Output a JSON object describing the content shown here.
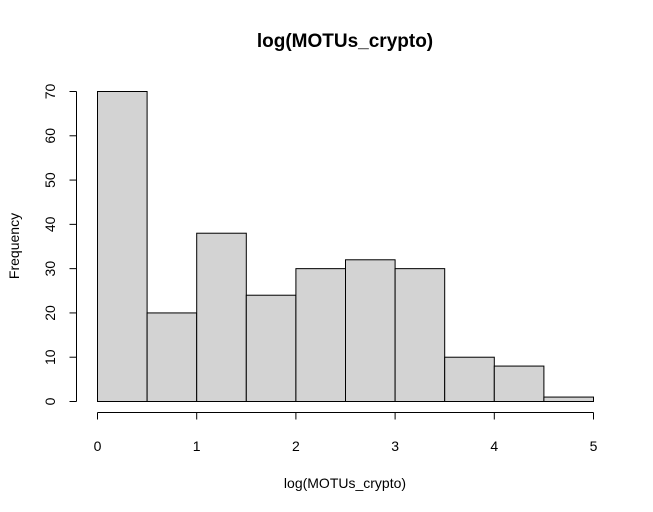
{
  "chart_data": {
    "type": "bar",
    "title": "log(MOTUs_crypto)",
    "xlabel": "log(MOTUs_crypto)",
    "ylabel": "Frequency",
    "bins": [
      {
        "from": 0.0,
        "to": 0.5,
        "value": 70
      },
      {
        "from": 0.5,
        "to": 1.0,
        "value": 20
      },
      {
        "from": 1.0,
        "to": 1.5,
        "value": 38
      },
      {
        "from": 1.5,
        "to": 2.0,
        "value": 24
      },
      {
        "from": 2.0,
        "to": 2.5,
        "value": 30
      },
      {
        "from": 2.5,
        "to": 3.0,
        "value": 32
      },
      {
        "from": 3.0,
        "to": 3.5,
        "value": 30
      },
      {
        "from": 3.5,
        "to": 4.0,
        "value": 10
      },
      {
        "from": 4.0,
        "to": 4.5,
        "value": 8
      },
      {
        "from": 4.5,
        "to": 5.0,
        "value": 1
      }
    ],
    "xlim": [
      0,
      5
    ],
    "ylim": [
      0,
      70
    ],
    "xticks": [
      0,
      1,
      2,
      3,
      4,
      5
    ],
    "yticks": [
      0,
      10,
      20,
      30,
      40,
      50,
      60,
      70
    ],
    "grid": false,
    "bar_color": "#d3d3d3",
    "edge_color": "#000000"
  }
}
